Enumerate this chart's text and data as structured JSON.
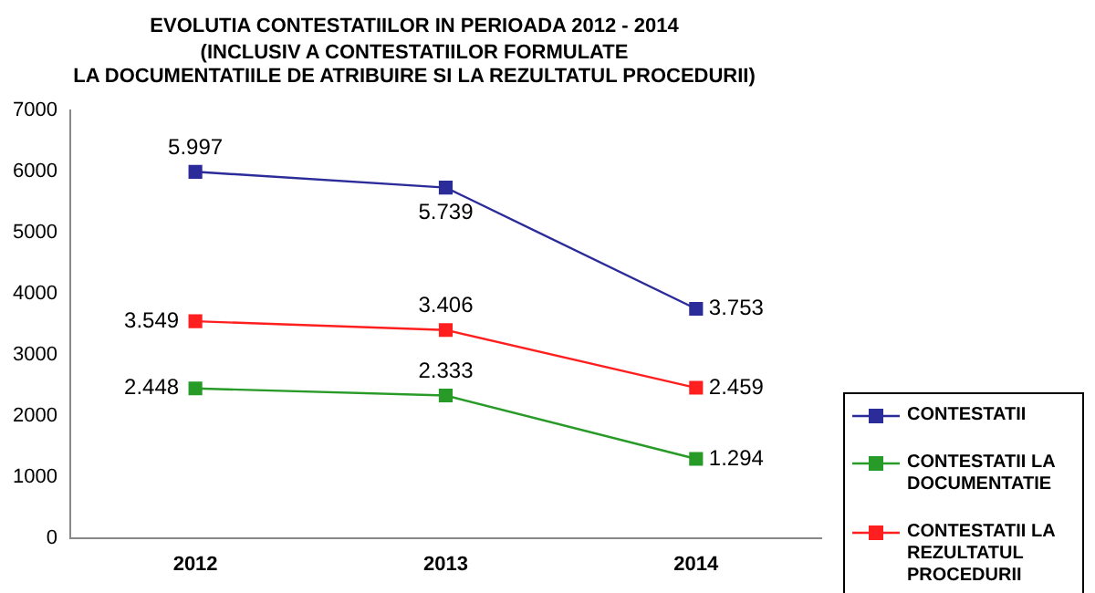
{
  "chart_data": {
    "type": "line",
    "title": "EVOLUTIA CONTESTATIILOR IN PERIOADA 2012 - 2014",
    "subtitle": "(INCLUSIV A CONTESTATIILOR FORMULATE\nLA DOCUMENTATIILE DE ATRIBUIRE SI LA REZULTATUL PROCEDURII)",
    "categories": [
      "2012",
      "2013",
      "2014"
    ],
    "series": [
      {
        "name": "CONTESTATII",
        "color": "#2b2b9a",
        "values": [
          5997,
          5739,
          3753
        ],
        "value_labels": [
          "5.997",
          "5.739",
          "3.753"
        ]
      },
      {
        "name": "CONTESTATII LA DOCUMENTATIE",
        "color": "#279a27",
        "values": [
          2448,
          2333,
          1294
        ],
        "value_labels": [
          "2.448",
          "2.333",
          "1.294"
        ]
      },
      {
        "name": "CONTESTATII LA REZULTATUL PROCEDURII",
        "color": "#ff1f1f",
        "values": [
          3549,
          3406,
          2459
        ],
        "value_labels": [
          "3.549",
          "3.406",
          "2.459"
        ]
      }
    ],
    "ylim": [
      0,
      7000
    ],
    "yticks": [
      0,
      1000,
      2000,
      3000,
      4000,
      5000,
      6000,
      7000
    ],
    "grid": false,
    "legend": "right",
    "marker": "square",
    "line_style": "solid"
  }
}
